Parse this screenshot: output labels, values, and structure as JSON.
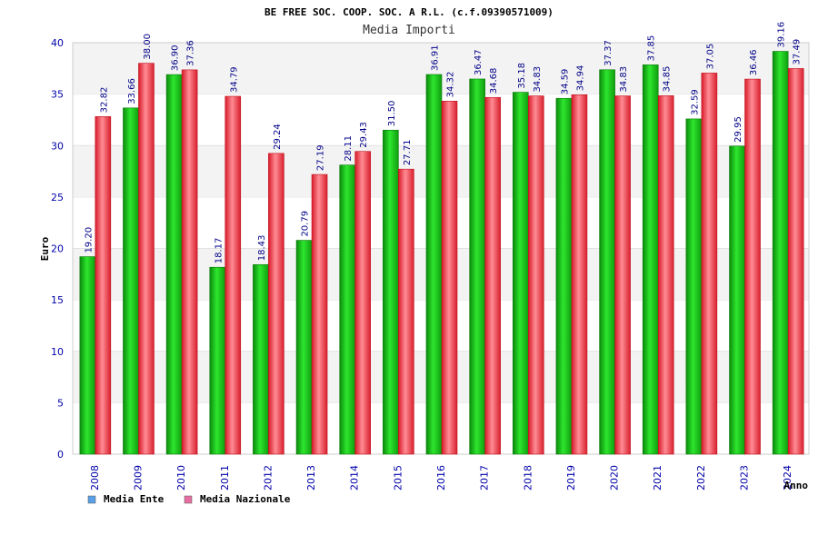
{
  "colors": {
    "media_ente": "#16c016",
    "media_nazionale": "#e8323c",
    "legend_ente": "#5aa0e6",
    "legend_nazionale": "#e66ea0",
    "tick_text": "#0000aa",
    "value_text": "#000088",
    "band": "#f3f3f3"
  },
  "chart_data": {
    "type": "bar",
    "title": "BE FREE SOC. COOP. SOC. A R.L. (c.f.09390571009)",
    "subtitle": "Media Importi",
    "xlabel": "Anno",
    "ylabel": "Euro",
    "ylim": [
      0,
      40
    ],
    "yticks": [
      "0",
      "5",
      "10",
      "15",
      "20",
      "25",
      "30",
      "35",
      "40"
    ],
    "grid": "horizontal alternating bands",
    "legend_position": "bottom-left",
    "categories": [
      "2008",
      "2009",
      "2010",
      "2011",
      "2012",
      "2013",
      "2014",
      "2015",
      "2016",
      "2017",
      "2018",
      "2019",
      "2020",
      "2021",
      "2022",
      "2023",
      "2024"
    ],
    "series": [
      {
        "name": "Media Ente",
        "values": [
          19.2,
          33.66,
          36.9,
          18.17,
          18.43,
          20.79,
          28.11,
          31.5,
          36.91,
          36.47,
          35.18,
          34.59,
          37.37,
          37.85,
          32.59,
          29.95,
          39.16
        ],
        "labels": [
          "19.20",
          "33.66",
          "36.90",
          "18.17",
          "18.43",
          "20.79",
          "28.11",
          "31.50",
          "36.91",
          "36.47",
          "35.18",
          "34.59",
          "37.37",
          "37.85",
          "32.59",
          "29.95",
          "39.16"
        ]
      },
      {
        "name": "Media Nazionale",
        "values": [
          32.82,
          38.0,
          37.36,
          34.79,
          29.24,
          27.19,
          29.43,
          27.71,
          34.32,
          34.68,
          34.83,
          34.94,
          34.83,
          34.85,
          37.05,
          36.46,
          37.49
        ],
        "labels": [
          "32.82",
          "38.00",
          "37.36",
          "34.79",
          "29.24",
          "27.19",
          "29.43",
          "27.71",
          "34.32",
          "34.68",
          "34.83",
          "34.94",
          "34.83",
          "34.85",
          "37.05",
          "36.46",
          "37.49"
        ]
      }
    ]
  }
}
